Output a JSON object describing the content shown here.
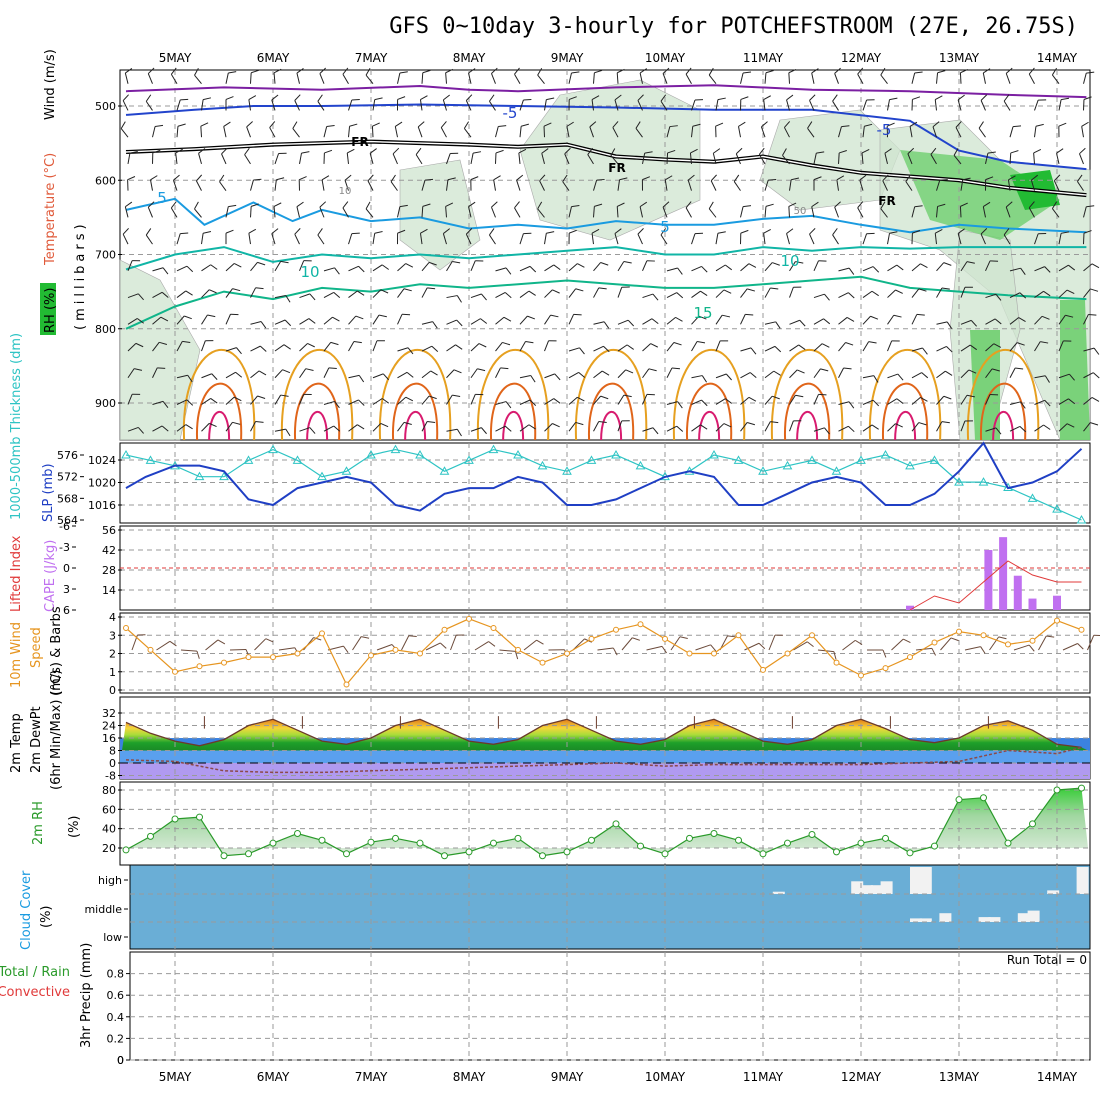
{
  "title": "GFS 0~10day 3-hourly for POTCHEFSTROOM (27E, 26.75S)",
  "days": [
    "5MAY",
    "6MAY",
    "7MAY",
    "8MAY",
    "9MAY",
    "10MAY",
    "11MAY",
    "12MAY",
    "13MAY",
    "14MAY"
  ],
  "colors": {
    "grid": "#9a9a9a",
    "temp_upper": "#7b1fa2",
    "temp_m5": "#2244cc",
    "temp_5": "#1a9be0",
    "temp_10": "#10b5a6",
    "temp_15": "#10b58a",
    "temp_warm": "#e6a020",
    "temp_hot": "#e0651a",
    "temp_hottest": "#d81b6f",
    "slp": "#1f3fc4",
    "thickness": "#2ec4c4",
    "lifted": "#e03a3a",
    "cape": "#c070f0",
    "wind": "#e69520",
    "dewpoint": "#8b4a4a",
    "rh2m": "#2a9a2a",
    "cloud_fill": "#6aaed6"
  },
  "panels": {
    "upper": {
      "wind_label": "Wind (m/s)",
      "temp_label": "Temperature (°C)",
      "rh_label": "RH (%)",
      "millibars_label": "(millibars)",
      "freezing_label": "FR",
      "contour_labels": [
        "-5",
        "-5",
        "5",
        "5",
        "10",
        "10",
        "15",
        "10",
        "50"
      ]
    },
    "slp": {
      "thickness_label": "1000-500mb Thickness (dm)",
      "slp_label": "SLP (mb)"
    },
    "cape": {
      "lifted_label": "Lifted Index",
      "cape_label": "CAPE (J/kg)"
    },
    "wind10": {
      "label1": "10m Wind",
      "label2": "Speed",
      "label3": "(m/s) & Barbs"
    },
    "temp2m": {
      "label1": "2m Temp",
      "label2": "2m DewPt",
      "label3": "(6hr Min/Max) (°C)"
    },
    "rh2m": {
      "label": "2m RH",
      "unit": "(%)"
    },
    "cloud": {
      "label": "Cloud Cover",
      "unit": "(%)",
      "levels": [
        "high",
        "middle",
        "low"
      ]
    },
    "precip": {
      "label_total": "Total / Rain",
      "label_conv": "Convective",
      "label_axis": "3hr Precip (mm)",
      "run_total": "Run Total = 0"
    }
  },
  "chart_data": [
    {
      "type": "line",
      "panel": "upper-air",
      "y_axis": "pressure (millibars)",
      "yticks": [
        500,
        600,
        700,
        800,
        900
      ],
      "ylim": [
        950,
        450
      ],
      "x_axis": "day index (5MAY=0 ... 14MAY=9)",
      "series": [
        {
          "name": "-5",
          "x": [
            -0.5,
            0.5,
            1.5,
            2.5,
            3.0,
            3.5,
            4.5,
            5.5,
            6.5,
            7.5,
            8.5,
            9.3
          ],
          "y": [
            480,
            475,
            478,
            473,
            478,
            480,
            475,
            472,
            478,
            480,
            485,
            488
          ]
        },
        {
          "name": "-5",
          "x": [
            -0.5,
            0.2,
            0.8,
            1.5,
            2.5,
            3.5,
            4.5,
            5.5,
            6.5,
            7.5,
            8.0,
            8.5,
            9.3
          ],
          "y": [
            512,
            505,
            500,
            500,
            498,
            500,
            502,
            505,
            505,
            520,
            560,
            575,
            585
          ]
        },
        {
          "name": "FR",
          "x": [
            -0.5,
            0.2,
            1.0,
            2.0,
            2.5,
            3.0,
            3.5,
            4.0,
            4.5,
            5.0,
            5.5,
            6.0,
            6.5,
            7.0,
            7.5,
            8.0,
            8.5,
            9.3
          ],
          "y": [
            562,
            558,
            552,
            548,
            550,
            552,
            555,
            552,
            568,
            572,
            575,
            568,
            580,
            590,
            595,
            600,
            610,
            620
          ]
        },
        {
          "name": "5",
          "x": [
            -0.5,
            0.0,
            0.3,
            0.8,
            1.2,
            1.5,
            2.0,
            2.5,
            3.0,
            3.5,
            4.0,
            4.5,
            5.0,
            5.5,
            6.0,
            6.5,
            7.0,
            7.5,
            8.0,
            8.5,
            9.3
          ],
          "y": [
            640,
            625,
            660,
            630,
            655,
            640,
            655,
            650,
            665,
            660,
            665,
            655,
            660,
            660,
            652,
            648,
            660,
            670,
            660,
            665,
            670
          ]
        },
        {
          "name": "10",
          "x": [
            -0.5,
            0.0,
            0.5,
            1.0,
            1.5,
            2.0,
            2.5,
            3.0,
            3.5,
            4.0,
            4.5,
            5.0,
            5.5,
            6.0,
            6.5,
            7.0,
            7.5,
            8.0,
            8.5,
            9.3
          ],
          "y": [
            720,
            700,
            690,
            710,
            700,
            705,
            700,
            705,
            700,
            695,
            690,
            700,
            700,
            690,
            695,
            690,
            692,
            690,
            690,
            690
          ]
        },
        {
          "name": "15",
          "x": [
            -0.5,
            0.0,
            0.5,
            1.0,
            1.5,
            2.0,
            2.5,
            3.0,
            3.5,
            4.0,
            4.5,
            5.0,
            5.5,
            6.0,
            6.5,
            7.0,
            7.5,
            8.0,
            8.5,
            9.3
          ],
          "y": [
            800,
            770,
            750,
            760,
            745,
            750,
            740,
            745,
            740,
            735,
            740,
            745,
            745,
            740,
            735,
            730,
            745,
            750,
            755,
            760
          ]
        }
      ]
    },
    {
      "type": "line",
      "panel": "slp-thickness",
      "xlabel": "day index",
      "series": [
        {
          "name": "SLP (mb)",
          "x": [
            -0.5,
            -0.3,
            0.0,
            0.25,
            0.5,
            0.75,
            1.0,
            1.25,
            1.5,
            1.75,
            2.0,
            2.25,
            2.5,
            2.75,
            3.0,
            3.25,
            3.5,
            3.75,
            4.0,
            4.25,
            4.5,
            4.75,
            5.0,
            5.25,
            5.5,
            5.75,
            6.0,
            6.25,
            6.5,
            6.75,
            7.0,
            7.25,
            7.5,
            7.75,
            8.0,
            8.25,
            8.5,
            8.75,
            9.0,
            9.25
          ],
          "y": [
            1019,
            1021,
            1023,
            1023,
            1022,
            1017,
            1016,
            1019,
            1020,
            1021,
            1020,
            1016,
            1015,
            1018,
            1019,
            1019,
            1021,
            1020,
            1016,
            1016,
            1017,
            1019,
            1021,
            1022,
            1021,
            1016,
            1016,
            1018,
            1020,
            1021,
            1020,
            1016,
            1016,
            1018,
            1022,
            1027,
            1019,
            1020,
            1022,
            1026
          ]
        },
        {
          "name": "Thickness (dm)",
          "x": [
            -0.5,
            -0.25,
            0.0,
            0.25,
            0.5,
            0.75,
            1.0,
            1.25,
            1.5,
            1.75,
            2.0,
            2.25,
            2.5,
            2.75,
            3.0,
            3.25,
            3.5,
            3.75,
            4.0,
            4.25,
            4.5,
            4.75,
            5.0,
            5.25,
            5.5,
            5.75,
            6.0,
            6.25,
            6.5,
            6.75,
            7.0,
            7.25,
            7.5,
            7.75,
            8.0,
            8.25,
            8.5,
            8.75,
            9.0,
            9.25
          ],
          "y": [
            576,
            575,
            574,
            572,
            572,
            575,
            577,
            575,
            572,
            573,
            576,
            577,
            576,
            573,
            575,
            577,
            576,
            574,
            573,
            575,
            576,
            574,
            572,
            573,
            576,
            575,
            573,
            574,
            575,
            573,
            575,
            576,
            574,
            575,
            571,
            571,
            570,
            568,
            566,
            564
          ]
        }
      ],
      "yticks_left": [
        564,
        568,
        572,
        576
      ],
      "yticks_right": [
        1016,
        1020,
        1024
      ]
    },
    {
      "type": "bar",
      "panel": "cape-lifted-index",
      "yticks_left": [
        6,
        3,
        0,
        -3,
        -6
      ],
      "yticks_right": [
        14,
        28,
        42,
        56
      ],
      "series": [
        {
          "name": "CAPE (J/kg)",
          "x": [
            7.5,
            8.3,
            8.45,
            8.6,
            8.75,
            9.0
          ],
          "y": [
            3,
            42,
            51,
            24,
            8,
            10
          ]
        },
        {
          "name": "Lifted Index",
          "x": [
            7.5,
            7.75,
            8.0,
            8.25,
            8.5,
            8.75,
            9.0,
            9.25
          ],
          "y": [
            6,
            4,
            5,
            2,
            -1,
            1,
            2,
            2
          ]
        }
      ]
    },
    {
      "type": "line",
      "panel": "10m-wind",
      "yticks": [
        0,
        1,
        2,
        3,
        4
      ],
      "series": [
        {
          "name": "Speed (m/s)",
          "x": [
            -0.5,
            -0.25,
            0.0,
            0.25,
            0.5,
            0.75,
            1.0,
            1.25,
            1.5,
            1.75,
            2.0,
            2.25,
            2.5,
            2.75,
            3.0,
            3.25,
            3.5,
            3.75,
            4.0,
            4.25,
            4.5,
            4.75,
            5.0,
            5.25,
            5.5,
            5.75,
            6.0,
            6.25,
            6.5,
            6.75,
            7.0,
            7.25,
            7.5,
            7.75,
            8.0,
            8.25,
            8.5,
            8.75,
            9.0,
            9.25
          ],
          "y": [
            3.4,
            2.2,
            1.0,
            1.3,
            1.5,
            1.8,
            1.8,
            2.0,
            3.1,
            0.3,
            1.9,
            2.2,
            2.0,
            3.3,
            3.9,
            3.4,
            2.2,
            1.5,
            2.0,
            2.8,
            3.3,
            3.6,
            2.8,
            2.0,
            2.0,
            3.0,
            1.1,
            2.0,
            3.0,
            1.5,
            0.8,
            1.2,
            1.8,
            2.6,
            3.2,
            3.0,
            2.5,
            2.7,
            3.8,
            3.3
          ]
        }
      ]
    },
    {
      "type": "area",
      "panel": "2m-temperature",
      "yticks": [
        -8,
        0,
        8,
        16,
        24,
        32
      ],
      "series": [
        {
          "name": "2m Temp",
          "x": [
            -0.5,
            -0.25,
            0.0,
            0.25,
            0.5,
            0.75,
            1.0,
            1.25,
            1.5,
            1.75,
            2.0,
            2.25,
            2.5,
            2.75,
            3.0,
            3.25,
            3.5,
            3.75,
            4.0,
            4.25,
            4.5,
            4.75,
            5.0,
            5.25,
            5.5,
            5.75,
            6.0,
            6.25,
            6.5,
            6.75,
            7.0,
            7.25,
            7.5,
            7.75,
            8.0,
            8.25,
            8.5,
            8.75,
            9.0,
            9.25
          ],
          "y": [
            26,
            19,
            14,
            11,
            15,
            24,
            28,
            21,
            14,
            12,
            16,
            24,
            28,
            21,
            14,
            12,
            15,
            24,
            28,
            21,
            14,
            12,
            15,
            24,
            28,
            21,
            14,
            12,
            15,
            24,
            28,
            22,
            15,
            13,
            16,
            24,
            27,
            21,
            12,
            10
          ]
        },
        {
          "name": "2m DewPt",
          "x": [
            -0.5,
            0.0,
            0.5,
            1.0,
            1.5,
            2.0,
            2.5,
            3.0,
            3.5,
            4.0,
            4.5,
            5.0,
            5.5,
            6.0,
            6.5,
            7.0,
            7.5,
            8.0,
            8.5,
            9.0,
            9.25
          ],
          "y": [
            2,
            1,
            -5,
            -6,
            -6,
            -5,
            -4,
            -3,
            -2,
            -1,
            0,
            -2,
            -1,
            -1,
            -1,
            -1,
            0,
            1,
            8,
            6,
            10
          ]
        }
      ]
    },
    {
      "type": "line",
      "panel": "2m-RH",
      "yticks": [
        20,
        40,
        60,
        80
      ],
      "series": [
        {
          "name": "2m RH (%)",
          "x": [
            -0.5,
            -0.25,
            0.0,
            0.25,
            0.5,
            0.75,
            1.0,
            1.25,
            1.5,
            1.75,
            2.0,
            2.25,
            2.5,
            2.75,
            3.0,
            3.25,
            3.5,
            3.75,
            4.0,
            4.25,
            4.5,
            4.75,
            5.0,
            5.25,
            5.5,
            5.75,
            6.0,
            6.25,
            6.5,
            6.75,
            7.0,
            7.25,
            7.5,
            7.75,
            8.0,
            8.25,
            8.5,
            8.75,
            9.0,
            9.25
          ],
          "y": [
            18,
            32,
            50,
            52,
            12,
            14,
            25,
            35,
            28,
            14,
            26,
            30,
            25,
            12,
            16,
            25,
            30,
            12,
            16,
            28,
            45,
            22,
            14,
            30,
            35,
            28,
            14,
            25,
            34,
            16,
            25,
            30,
            15,
            22,
            70,
            72,
            25,
            45,
            80,
            82
          ]
        }
      ]
    },
    {
      "type": "bar",
      "panel": "cloud-cover",
      "categories": [
        "high",
        "middle",
        "low"
      ],
      "series": [
        {
          "name": "high",
          "x": [
            6.1,
            6.9,
            7.0,
            7.1,
            7.2,
            7.5,
            7.6,
            8.9,
            9.2
          ],
          "y": [
            5,
            45,
            30,
            30,
            45,
            100,
            100,
            10,
            100
          ]
        },
        {
          "name": "middle",
          "x": [
            7.5,
            7.6,
            7.8,
            8.2,
            8.3,
            8.6,
            8.7
          ],
          "y": [
            10,
            10,
            30,
            15,
            15,
            30,
            40
          ]
        }
      ]
    },
    {
      "type": "bar",
      "panel": "3hr-precip",
      "ylabel": "3hr Precip (mm)",
      "yticks": [
        0,
        0.2,
        0.4,
        0.6,
        0.8
      ],
      "series": [
        {
          "name": "Total / Rain",
          "x": [],
          "y": []
        }
      ]
    }
  ]
}
